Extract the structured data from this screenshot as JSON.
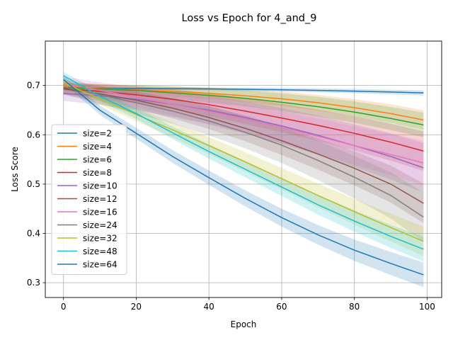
{
  "chart_data": {
    "type": "line",
    "title": "Loss vs Epoch for 4_and_9",
    "xlabel": "Epoch",
    "ylabel": "Loss Score",
    "xlim": [
      -5,
      104
    ],
    "ylim": [
      0.27,
      0.79
    ],
    "xticks": [
      0,
      20,
      40,
      60,
      80,
      100
    ],
    "yticks": [
      0.3,
      0.4,
      0.5,
      0.6,
      0.7
    ],
    "grid": true,
    "legend_position": "lower-left",
    "confidence_bands": true,
    "x": [
      0,
      10,
      20,
      30,
      40,
      50,
      60,
      70,
      80,
      90,
      99
    ],
    "series": [
      {
        "name": "size=2",
        "color": "#1f77b4",
        "values": [
          0.695,
          0.6945,
          0.694,
          0.6935,
          0.693,
          0.6922,
          0.6912,
          0.69,
          0.6885,
          0.6868,
          0.685
        ],
        "band_halfwidth": 0.005
      },
      {
        "name": "size=4",
        "color": "#ff7f0e",
        "values": [
          0.7,
          0.694,
          0.691,
          0.688,
          0.684,
          0.679,
          0.673,
          0.665,
          0.655,
          0.643,
          0.63
        ],
        "band_halfwidth": 0.02
      },
      {
        "name": "size=6",
        "color": "#2ca02c",
        "values": [
          0.696,
          0.693,
          0.69,
          0.685,
          0.68,
          0.674,
          0.666,
          0.657,
          0.646,
          0.633,
          0.62
        ],
        "band_halfwidth": 0.025
      },
      {
        "name": "size=8",
        "color": "#d62728",
        "values": [
          0.694,
          0.688,
          0.681,
          0.672,
          0.661,
          0.648,
          0.634,
          0.619,
          0.603,
          0.585,
          0.567
        ],
        "band_halfwidth": 0.04
      },
      {
        "name": "size=10",
        "color": "#9467bd",
        "values": [
          0.684,
          0.679,
          0.672,
          0.662,
          0.65,
          0.635,
          0.618,
          0.599,
          0.578,
          0.556,
          0.533
        ],
        "band_halfwidth": 0.05
      },
      {
        "name": "size=12",
        "color": "#8c564b",
        "values": [
          0.693,
          0.683,
          0.67,
          0.654,
          0.635,
          0.613,
          0.588,
          0.561,
          0.532,
          0.5,
          0.461
        ],
        "band_halfwidth": 0.04
      },
      {
        "name": "size=16",
        "color": "#e377c2",
        "values": [
          0.704,
          0.69,
          0.676,
          0.662,
          0.648,
          0.632,
          0.615,
          0.597,
          0.578,
          0.56,
          0.543
        ],
        "band_halfwidth": 0.045
      },
      {
        "name": "size=24",
        "color": "#7f7f7f",
        "values": [
          0.697,
          0.681,
          0.665,
          0.648,
          0.628,
          0.605,
          0.579,
          0.548,
          0.514,
          0.477,
          0.433
        ],
        "band_halfwidth": 0.05
      },
      {
        "name": "size=32",
        "color": "#bcbd22",
        "values": [
          0.705,
          0.673,
          0.641,
          0.61,
          0.578,
          0.545,
          0.511,
          0.477,
          0.444,
          0.412,
          0.384
        ],
        "band_halfwidth": 0.03
      },
      {
        "name": "size=48",
        "color": "#17becf",
        "values": [
          0.72,
          0.678,
          0.643,
          0.604,
          0.566,
          0.53,
          0.494,
          0.458,
          0.425,
          0.394,
          0.368
        ],
        "band_halfwidth": 0.025
      },
      {
        "name": "size=64",
        "color": "#1f77b4",
        "values": [
          0.712,
          0.65,
          0.603,
          0.556,
          0.513,
          0.471,
          0.432,
          0.397,
          0.366,
          0.339,
          0.316
        ],
        "band_halfwidth": 0.025
      }
    ]
  }
}
